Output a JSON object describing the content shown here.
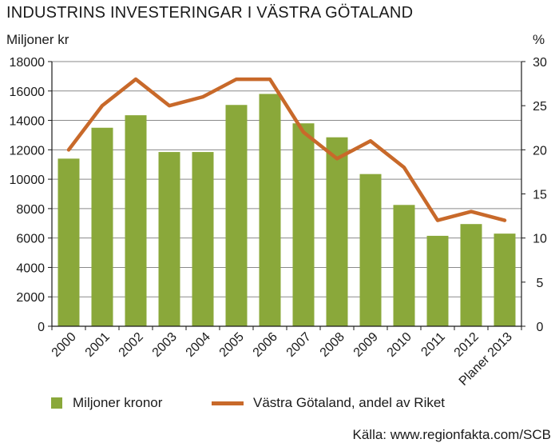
{
  "chart_data": {
    "type": "bar",
    "title": "INDUSTRINS INVESTERINGAR I VÄSTRA GÖTALAND",
    "ylabel": "Miljoner kr",
    "y2label": "%",
    "categories": [
      "2000",
      "2001",
      "2002",
      "2003",
      "2004",
      "2005",
      "2006",
      "2007",
      "2008",
      "2009",
      "2010",
      "2011",
      "2012",
      "Planer 2013"
    ],
    "ylim": [
      0,
      18000
    ],
    "y_ticks": [
      0,
      2000,
      4000,
      6000,
      8000,
      10000,
      12000,
      14000,
      16000,
      18000
    ],
    "y2lim": [
      0,
      30
    ],
    "y2_ticks": [
      0,
      5,
      10,
      15,
      20,
      25,
      30
    ],
    "series": [
      {
        "name": "Miljoner kronor",
        "type": "bar",
        "axis": "left",
        "color": "#8aa83a",
        "values": [
          11400,
          13500,
          14350,
          11850,
          11850,
          15050,
          15800,
          13800,
          12850,
          10350,
          8250,
          6150,
          6950,
          6300
        ]
      },
      {
        "name": "Västra Götaland, andel av Riket",
        "type": "line",
        "axis": "right",
        "color": "#c8692a",
        "values": [
          20,
          25,
          28,
          25,
          26,
          28,
          28,
          22,
          19,
          21,
          18,
          12,
          13,
          12
        ]
      }
    ],
    "grid": true,
    "legend_position": "bottom"
  },
  "source": "Källa: www.regionfakta.com/SCB"
}
